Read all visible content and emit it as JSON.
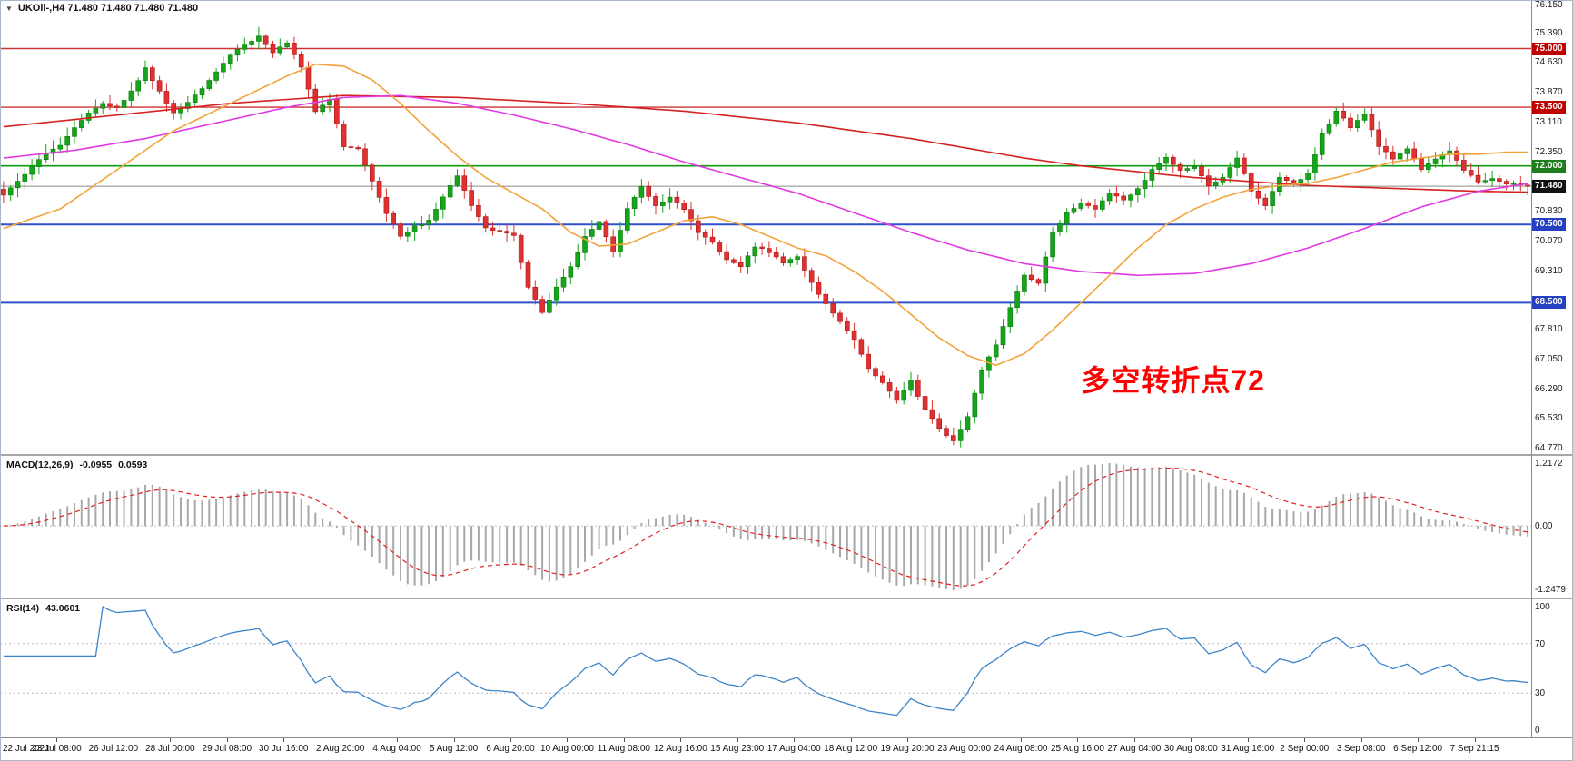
{
  "header": {
    "collapse_icon": "▼",
    "title": "UKOil-,H4 71.480 71.480 71.480 71.480"
  },
  "colors": {
    "bull": "#16a51a",
    "bull_border": "#0c7a10",
    "bear": "#e03030",
    "bear_border": "#a81818"
  },
  "chart_data": {
    "type": "candlestick",
    "symbol": "UKOil-",
    "timeframe": "H4",
    "ohlc": {
      "open": "71.480",
      "high": "71.480",
      "low": "71.480",
      "close": "71.480"
    },
    "num_candles": 216,
    "price_axis": {
      "min": 64.77,
      "max": 76.15,
      "ticks": [
        "76.150",
        "75.390",
        "74.630",
        "73.870",
        "73.110",
        "72.350",
        "70.830",
        "70.070",
        "69.310",
        "67.810",
        "67.050",
        "66.290",
        "65.530",
        "64.770"
      ]
    },
    "price_waypoints": [
      [
        0,
        71.25
      ],
      [
        2,
        71.6
      ],
      [
        4,
        72.0
      ],
      [
        6,
        72.3
      ],
      [
        8,
        72.55
      ],
      [
        10,
        73.0
      ],
      [
        12,
        73.35
      ],
      [
        14,
        73.6
      ],
      [
        16,
        73.5
      ],
      [
        18,
        73.9
      ],
      [
        20,
        74.5
      ],
      [
        22,
        73.9
      ],
      [
        24,
        73.35
      ],
      [
        26,
        73.6
      ],
      [
        28,
        74.0
      ],
      [
        30,
        74.4
      ],
      [
        32,
        74.85
      ],
      [
        34,
        75.1
      ],
      [
        36,
        75.3
      ],
      [
        38,
        74.9
      ],
      [
        40,
        75.15
      ],
      [
        42,
        74.5
      ],
      [
        44,
        73.4
      ],
      [
        46,
        73.7
      ],
      [
        48,
        72.5
      ],
      [
        50,
        72.45
      ],
      [
        52,
        71.6
      ],
      [
        54,
        70.8
      ],
      [
        56,
        70.2
      ],
      [
        58,
        70.45
      ],
      [
        60,
        70.6
      ],
      [
        62,
        71.2
      ],
      [
        64,
        71.75
      ],
      [
        66,
        71.0
      ],
      [
        68,
        70.4
      ],
      [
        70,
        70.35
      ],
      [
        72,
        70.2
      ],
      [
        74,
        68.9
      ],
      [
        76,
        68.25
      ],
      [
        78,
        68.9
      ],
      [
        80,
        69.4
      ],
      [
        82,
        70.2
      ],
      [
        84,
        70.6
      ],
      [
        86,
        69.8
      ],
      [
        88,
        70.9
      ],
      [
        90,
        71.45
      ],
      [
        92,
        71.0
      ],
      [
        94,
        71.2
      ],
      [
        96,
        70.9
      ],
      [
        98,
        70.3
      ],
      [
        100,
        70.05
      ],
      [
        102,
        69.6
      ],
      [
        104,
        69.4
      ],
      [
        106,
        69.95
      ],
      [
        108,
        69.8
      ],
      [
        110,
        69.5
      ],
      [
        112,
        69.7
      ],
      [
        114,
        69.0
      ],
      [
        116,
        68.45
      ],
      [
        118,
        68.0
      ],
      [
        120,
        67.55
      ],
      [
        122,
        66.8
      ],
      [
        124,
        66.45
      ],
      [
        126,
        66.0
      ],
      [
        128,
        66.5
      ],
      [
        130,
        65.75
      ],
      [
        132,
        65.3
      ],
      [
        134,
        64.95
      ],
      [
        136,
        65.6
      ],
      [
        138,
        66.8
      ],
      [
        140,
        67.4
      ],
      [
        142,
        68.4
      ],
      [
        144,
        69.2
      ],
      [
        146,
        69.0
      ],
      [
        148,
        70.3
      ],
      [
        150,
        70.8
      ],
      [
        152,
        71.05
      ],
      [
        154,
        70.9
      ],
      [
        156,
        71.3
      ],
      [
        158,
        71.15
      ],
      [
        160,
        71.4
      ],
      [
        162,
        71.9
      ],
      [
        164,
        72.2
      ],
      [
        166,
        71.9
      ],
      [
        168,
        72.0
      ],
      [
        170,
        71.5
      ],
      [
        172,
        71.7
      ],
      [
        174,
        72.2
      ],
      [
        176,
        71.35
      ],
      [
        178,
        71.0
      ],
      [
        180,
        71.7
      ],
      [
        182,
        71.55
      ],
      [
        184,
        71.8
      ],
      [
        186,
        72.8
      ],
      [
        188,
        73.4
      ],
      [
        190,
        73.0
      ],
      [
        192,
        73.3
      ],
      [
        194,
        72.5
      ],
      [
        196,
        72.2
      ],
      [
        198,
        72.45
      ],
      [
        200,
        71.9
      ],
      [
        202,
        72.2
      ],
      [
        204,
        72.4
      ],
      [
        206,
        71.9
      ],
      [
        208,
        71.6
      ],
      [
        210,
        71.7
      ],
      [
        212,
        71.55
      ],
      [
        214,
        71.5
      ],
      [
        215,
        71.48
      ]
    ],
    "horizontal_lines": [
      {
        "price": 75.0,
        "color": "#cc3333",
        "width": 1.4
      },
      {
        "price": 73.5,
        "color": "#cc3333",
        "width": 1.4
      },
      {
        "price": 72.0,
        "color": "#119911",
        "width": 1.6
      },
      {
        "price": 70.5,
        "color": "#3050cc",
        "width": 2
      },
      {
        "price": 68.5,
        "color": "#3050cc",
        "width": 2
      }
    ],
    "price_badges": [
      {
        "label": "75.000",
        "price": 75.0,
        "bg": "#c00000"
      },
      {
        "label": "73.500",
        "price": 73.5,
        "bg": "#c00000"
      },
      {
        "label": "72.000",
        "price": 72.0,
        "bg": "#1e7d1e"
      },
      {
        "label": "71.480",
        "price": 71.48,
        "bg": "#111111"
      },
      {
        "label": "70.500",
        "price": 70.5,
        "bg": "#2441c0"
      },
      {
        "label": "68.500",
        "price": 68.5,
        "bg": "#2441c0"
      }
    ],
    "current_price": {
      "value": 71.48,
      "label": "71.480",
      "line_color": "#8a8a8a"
    },
    "moving_averages": [
      {
        "name": "slow-red",
        "color": "#d42222",
        "width": 1.6,
        "points": [
          [
            0,
            73.0
          ],
          [
            16,
            73.3
          ],
          [
            32,
            73.6
          ],
          [
            48,
            73.8
          ],
          [
            64,
            73.75
          ],
          [
            80,
            73.6
          ],
          [
            96,
            73.4
          ],
          [
            112,
            73.1
          ],
          [
            128,
            72.7
          ],
          [
            136,
            72.45
          ],
          [
            144,
            72.2
          ],
          [
            152,
            72.0
          ],
          [
            160,
            71.85
          ],
          [
            168,
            71.7
          ],
          [
            176,
            71.6
          ],
          [
            184,
            71.5
          ],
          [
            192,
            71.45
          ],
          [
            200,
            71.4
          ],
          [
            208,
            71.35
          ],
          [
            215,
            71.33
          ]
        ]
      },
      {
        "name": "medium-magenta",
        "color": "#e23ae2",
        "width": 1.6,
        "points": [
          [
            0,
            72.2
          ],
          [
            10,
            72.4
          ],
          [
            20,
            72.7
          ],
          [
            30,
            73.1
          ],
          [
            40,
            73.5
          ],
          [
            48,
            73.75
          ],
          [
            56,
            73.8
          ],
          [
            64,
            73.6
          ],
          [
            72,
            73.3
          ],
          [
            80,
            72.95
          ],
          [
            88,
            72.55
          ],
          [
            96,
            72.1
          ],
          [
            104,
            71.7
          ],
          [
            112,
            71.3
          ],
          [
            120,
            70.8
          ],
          [
            128,
            70.3
          ],
          [
            136,
            69.85
          ],
          [
            144,
            69.5
          ],
          [
            152,
            69.3
          ],
          [
            160,
            69.2
          ],
          [
            168,
            69.25
          ],
          [
            176,
            69.5
          ],
          [
            184,
            69.9
          ],
          [
            192,
            70.4
          ],
          [
            200,
            70.95
          ],
          [
            208,
            71.35
          ],
          [
            215,
            71.55
          ]
        ]
      },
      {
        "name": "fast-orange",
        "color": "#f2a33c",
        "width": 1.6,
        "points": [
          [
            0,
            70.4
          ],
          [
            8,
            70.9
          ],
          [
            16,
            71.9
          ],
          [
            24,
            72.9
          ],
          [
            32,
            73.6
          ],
          [
            40,
            74.3
          ],
          [
            44,
            74.6
          ],
          [
            48,
            74.55
          ],
          [
            52,
            74.2
          ],
          [
            56,
            73.6
          ],
          [
            60,
            72.9
          ],
          [
            64,
            72.25
          ],
          [
            68,
            71.7
          ],
          [
            72,
            71.3
          ],
          [
            76,
            70.9
          ],
          [
            80,
            70.3
          ],
          [
            84,
            69.95
          ],
          [
            88,
            70.0
          ],
          [
            92,
            70.3
          ],
          [
            96,
            70.6
          ],
          [
            100,
            70.7
          ],
          [
            104,
            70.5
          ],
          [
            108,
            70.2
          ],
          [
            112,
            69.9
          ],
          [
            116,
            69.7
          ],
          [
            120,
            69.3
          ],
          [
            124,
            68.8
          ],
          [
            128,
            68.2
          ],
          [
            132,
            67.6
          ],
          [
            136,
            67.15
          ],
          [
            140,
            66.9
          ],
          [
            144,
            67.2
          ],
          [
            148,
            67.8
          ],
          [
            152,
            68.5
          ],
          [
            156,
            69.2
          ],
          [
            160,
            69.9
          ],
          [
            164,
            70.5
          ],
          [
            168,
            70.9
          ],
          [
            172,
            71.2
          ],
          [
            176,
            71.4
          ],
          [
            180,
            71.5
          ],
          [
            184,
            71.55
          ],
          [
            188,
            71.7
          ],
          [
            192,
            71.9
          ],
          [
            196,
            72.1
          ],
          [
            200,
            72.2
          ],
          [
            204,
            72.3
          ],
          [
            208,
            72.3
          ],
          [
            212,
            72.35
          ],
          [
            215,
            72.35
          ]
        ]
      }
    ],
    "annotation": {
      "text": "多空转折点72",
      "color": "#ff0000",
      "candle": 152,
      "price": 67.1,
      "font_px": 32
    },
    "macd": {
      "title": "MACD(12,26,9)",
      "value": "-0.0955",
      "signal_value": "0.0593",
      "fast": 12,
      "slow": 26,
      "signal": 9,
      "max_label": "1.2172",
      "zero_label": "0.00",
      "min_label": "-1.2479",
      "hist_color": "#a8a8a8",
      "signal_color": "#e02020"
    },
    "rsi": {
      "title": "RSI(14)",
      "value": "43.0601",
      "period": 14,
      "levels": [
        70,
        30
      ],
      "axis_labels": [
        "100",
        "70",
        "30",
        "0"
      ],
      "color": "#3d85c8"
    },
    "time_axis": {
      "labels": [
        "22 Jul 2021",
        "23 Jul 08:00",
        "26 Jul 12:00",
        "28 Jul 00:00",
        "29 Jul 08:00",
        "30 Jul 16:00",
        "2 Aug 20:00",
        "4 Aug 04:00",
        "5 Aug 12:00",
        "6 Aug 20:00",
        "10 Aug 00:00",
        "11 Aug 08:00",
        "12 Aug 16:00",
        "15 Aug 23:00",
        "17 Aug 04:00",
        "18 Aug 12:00",
        "19 Aug 20:00",
        "23 Aug 00:00",
        "24 Aug 08:00",
        "25 Aug 16:00",
        "27 Aug 04:00",
        "30 Aug 08:00",
        "31 Aug 16:00",
        "2 Sep 00:00",
        "3 Sep 08:00",
        "6 Sep 12:00",
        "7 Sep 21:15"
      ]
    }
  }
}
